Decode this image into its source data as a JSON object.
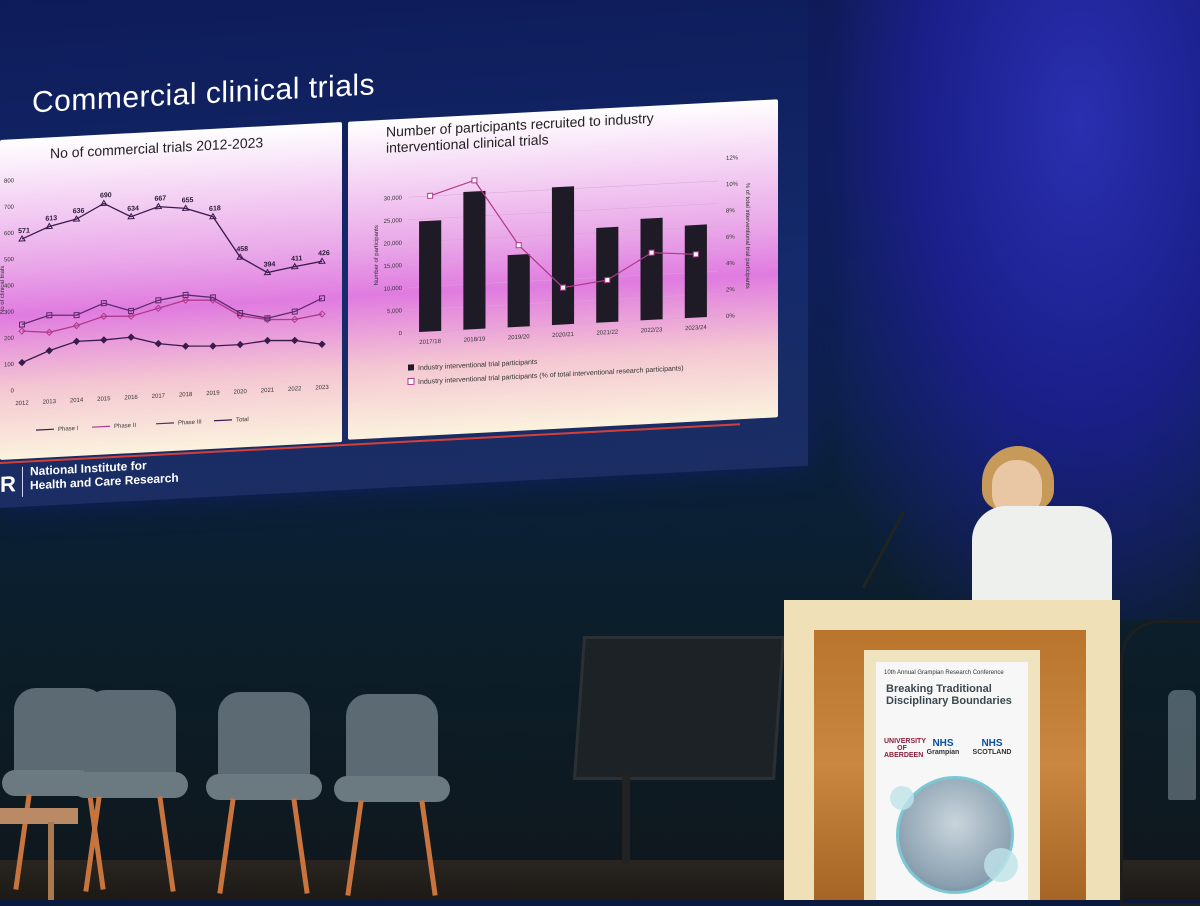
{
  "slide": {
    "title": "Commercial clinical trials",
    "logo_mark": "R",
    "logo_text_line1": "National Institute for",
    "logo_text_line2": "Health and Care Research"
  },
  "colors": {
    "accent_red": "#d3403a",
    "series_dark": "#3a1b4d",
    "series_pink": "#b03a8c",
    "bar_dark": "#1f1b26"
  },
  "chart_data": [
    {
      "type": "line",
      "title": "No of commercial trials 2012-2023",
      "xlabel": "",
      "ylabel": "No of clinical trials",
      "categories": [
        "2012",
        "2013",
        "2014",
        "2015",
        "2016",
        "2017",
        "2018",
        "2019",
        "2020",
        "2021",
        "2022",
        "2023"
      ],
      "yticks": [
        "0",
        "100",
        "200",
        "300",
        "400",
        "500",
        "600",
        "700",
        "800"
      ],
      "ylim": [
        0,
        800
      ],
      "series": [
        {
          "name": "Phase I",
          "values": [
            100,
            140,
            170,
            170,
            175,
            145,
            130,
            125,
            125,
            135,
            130,
            110
          ]
        },
        {
          "name": "Phase II",
          "values": [
            220,
            210,
            230,
            260,
            255,
            280,
            305,
            300,
            235,
            215,
            210,
            225
          ]
        },
        {
          "name": "Phase III",
          "values": [
            245,
            275,
            270,
            310,
            275,
            310,
            325,
            310,
            245,
            220,
            240,
            285
          ]
        },
        {
          "name": "Total",
          "values": [
            571,
            613,
            636,
            690,
            634,
            667,
            655,
            618,
            458,
            394,
            411,
            426
          ]
        }
      ],
      "total_labels": [
        "571",
        "613",
        "636",
        "690",
        "634",
        "667",
        "655",
        "618",
        "458",
        "394",
        "411",
        "426"
      ],
      "legend_position": "bottom"
    },
    {
      "type": "bar",
      "title": "Number of participants recruited to industry interventional clinical trials",
      "ylabel": "Number of participants",
      "y2label": "% of total interventional trial participants",
      "categories": [
        "2017/18",
        "2018/19",
        "2019/20",
        "2020/21",
        "2021/22",
        "2022/23",
        "2023/24"
      ],
      "yticks": [
        "0",
        "5,000",
        "10,000",
        "15,000",
        "20,000",
        "25,000",
        "30,000"
      ],
      "y2ticks": [
        "0%",
        "2%",
        "4%",
        "6%",
        "8%",
        "10%",
        "12%"
      ],
      "ylim": [
        0,
        35000
      ],
      "y2lim": [
        0,
        12
      ],
      "series": [
        {
          "name": "Industry interventional trial participants",
          "type": "bar",
          "values": [
            24500,
            30500,
            16000,
            30500,
            21000,
            22500,
            20500
          ]
        },
        {
          "name": "Industry interventional trial  participants (% of total interventional research participants)",
          "type": "line",
          "axis": "y2",
          "values": [
            10.3,
            11.3,
            6.2,
            2.8,
            3.2,
            5.1,
            4.8
          ]
        }
      ],
      "legend_position": "bottom"
    }
  ],
  "poster": {
    "subtitle": "10th Annual Grampian Research Conference",
    "title_line1": "Breaking Traditional",
    "title_line2": "Disciplinary Boundaries",
    "logo1": "UNIVERSITY OF ABERDEEN",
    "logo2": "NHS",
    "logo2_sub": "Grampian",
    "logo3": "NHS",
    "logo3_sub": "SCOTLAND"
  }
}
